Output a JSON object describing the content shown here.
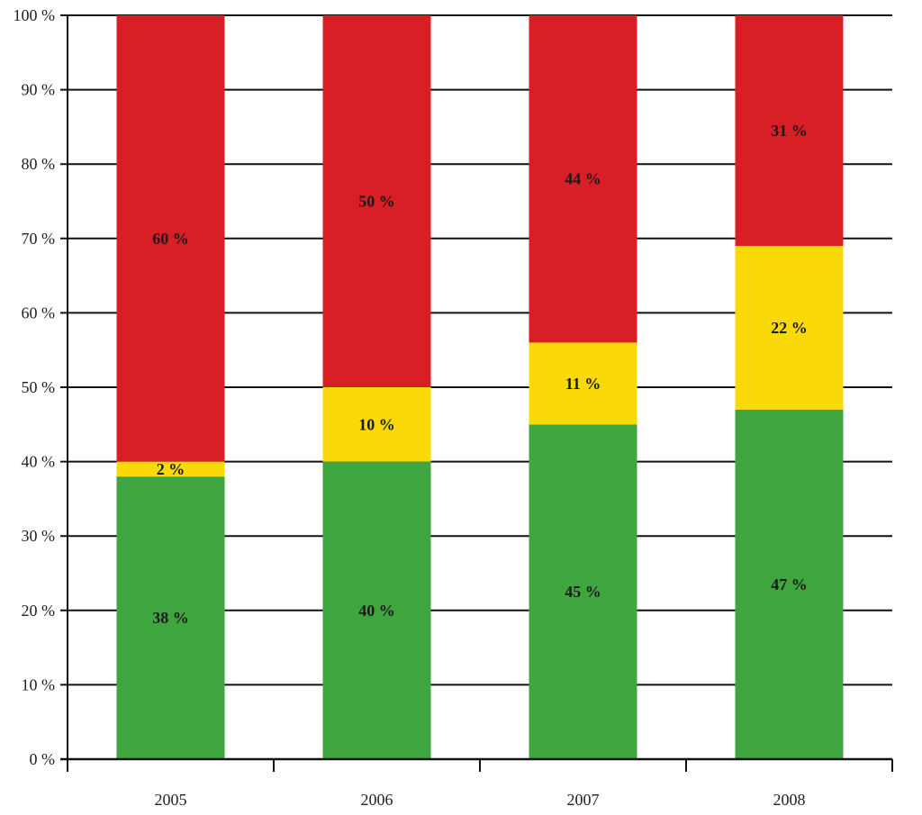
{
  "chart_data": {
    "type": "bar",
    "stacked": true,
    "categories": [
      "2005",
      "2006",
      "2007",
      "2008"
    ],
    "series": [
      {
        "values": [
          38,
          40,
          45,
          47
        ],
        "labels": [
          "38 %",
          "40 %",
          "45 %",
          "47 %"
        ],
        "color": "#3fa63f"
      },
      {
        "values": [
          2,
          10,
          11,
          22
        ],
        "labels": [
          "2 %",
          "10 %",
          "11 %",
          "22 %"
        ],
        "color": "#f9d908"
      },
      {
        "values": [
          60,
          50,
          44,
          31
        ],
        "labels": [
          "60 %",
          "50 %",
          "44 %",
          "31 %"
        ],
        "color": "#d81f26"
      }
    ],
    "yticks": [
      "0 %",
      "10 %",
      "20 %",
      "30 %",
      "40 %",
      "50 %",
      "60 %",
      "70 %",
      "80 %",
      "90 %",
      "100 %"
    ],
    "ylim": [
      0,
      100
    ],
    "grid": true,
    "legend": "none"
  }
}
